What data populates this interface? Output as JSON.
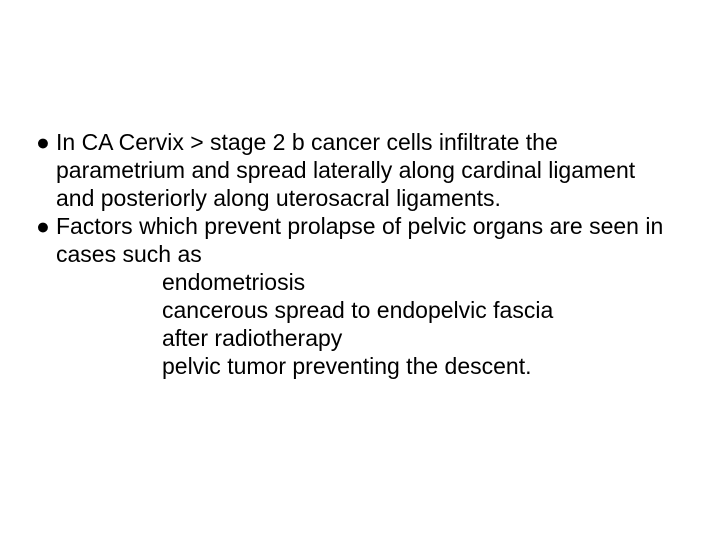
{
  "bullets": [
    {
      "marker": "●",
      "text": "In CA Cervix > stage 2 b cancer cells infiltrate the parametrium and spread laterally along cardinal ligament and posteriorly along uterosacral ligaments."
    },
    {
      "marker": "●",
      "text": "Factors which prevent prolapse of pelvic organs are seen in cases such as"
    }
  ],
  "subItems": [
    "endometriosis",
    "cancerous spread to endopelvic fascia",
    "after radiotherapy",
    "pelvic tumor preventing the descent."
  ],
  "styling": {
    "fontSize": 23,
    "lineHeight": 1.22,
    "textColor": "#000000",
    "backgroundColor": "#ffffff",
    "fontFamily": "Arial"
  }
}
